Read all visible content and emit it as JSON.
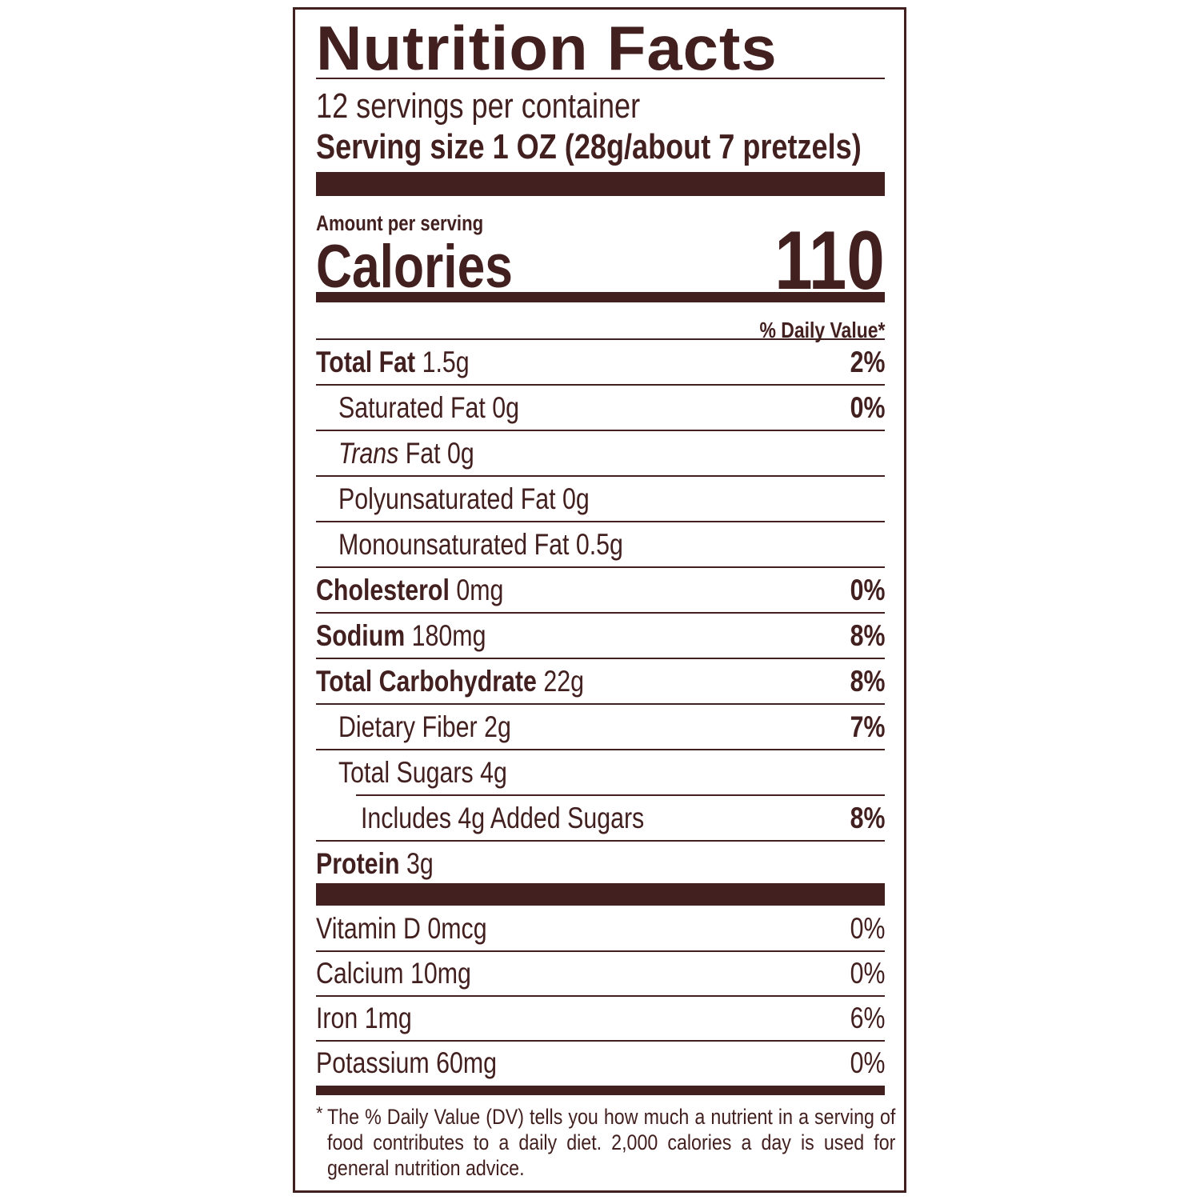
{
  "colors": {
    "ink": "#42201f",
    "background": "#ffffff"
  },
  "title": "Nutrition Facts",
  "servings_per_container": "12 servings per container",
  "serving_size_label": "Serving size",
  "serving_size_value": "1 OZ (28g/about 7 pretzels)",
  "amount_per_serving": "Amount per serving",
  "calories_label": "Calories",
  "calories_value": "110",
  "daily_value_header": "% Daily Value*",
  "nutrients": [
    {
      "name": "Total Fat",
      "amount": "1.5g",
      "dv": "2%"
    },
    {
      "name": "Saturated Fat",
      "amount": "0g",
      "dv": "0%"
    },
    {
      "name": "Trans",
      "name_suffix": "Fat",
      "amount": "0g",
      "dv": ""
    },
    {
      "name": "Polyunsaturated Fat",
      "amount": "0g",
      "dv": ""
    },
    {
      "name": "Monounsaturated Fat",
      "amount": "0.5g",
      "dv": ""
    },
    {
      "name": "Cholesterol",
      "amount": "0mg",
      "dv": "0%"
    },
    {
      "name": "Sodium",
      "amount": "180mg",
      "dv": "8%"
    },
    {
      "name": "Total Carbohydrate",
      "amount": "22g",
      "dv": "8%"
    },
    {
      "name": "Dietary Fiber",
      "amount": "2g",
      "dv": "7%"
    },
    {
      "name": "Total Sugars",
      "amount": "4g",
      "dv": ""
    },
    {
      "name": "Includes 4g Added Sugars",
      "amount": "",
      "dv": "8%"
    },
    {
      "name": "Protein",
      "amount": "3g",
      "dv": ""
    }
  ],
  "vitamins": [
    {
      "name": "Vitamin D",
      "amount": "0mcg",
      "dv": "0%"
    },
    {
      "name": "Calcium",
      "amount": "10mg",
      "dv": "0%"
    },
    {
      "name": "Iron",
      "amount": "1mg",
      "dv": "6%"
    },
    {
      "name": "Potassium",
      "amount": "60mg",
      "dv": "0%"
    }
  ],
  "footnote_star": "*",
  "footnote": "The % Daily Value (DV) tells you how much a nutrient in a serving of food contributes to a daily diet. 2,000 calories a day is used for general nutrition advice."
}
